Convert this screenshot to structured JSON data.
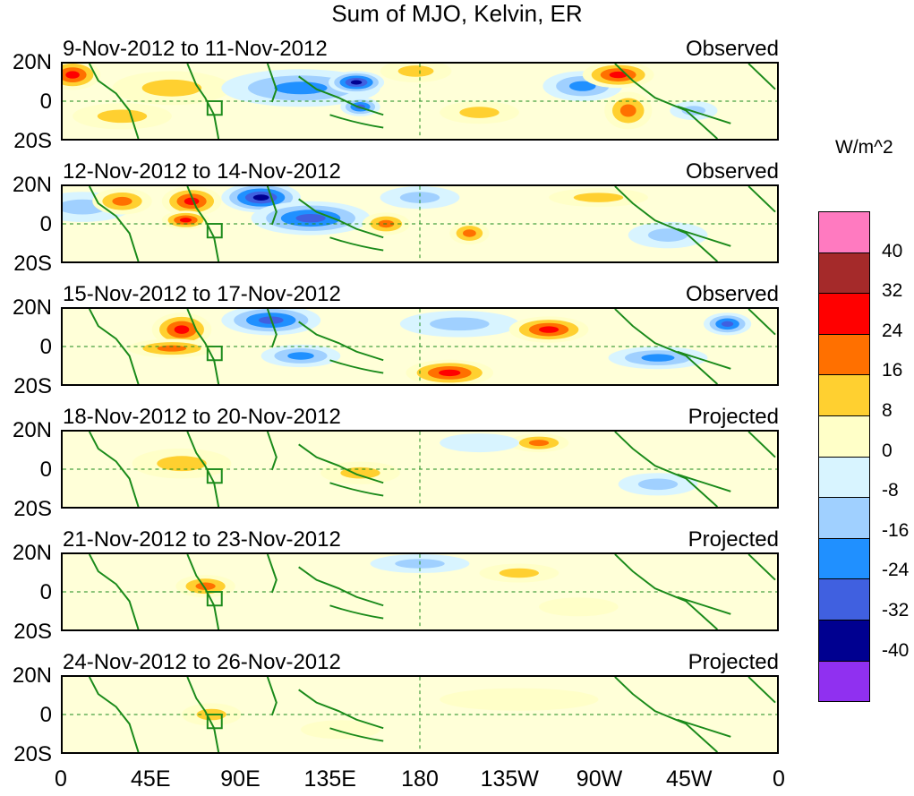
{
  "title": "Sum of MJO, Kelvin, ER",
  "units": "W/m^2",
  "panels": [
    {
      "date_range": "9-Nov-2012 to 11-Nov-2012",
      "kind": "Observed"
    },
    {
      "date_range": "12-Nov-2012 to 14-Nov-2012",
      "kind": "Observed"
    },
    {
      "date_range": "15-Nov-2012 to 17-Nov-2012",
      "kind": "Observed"
    },
    {
      "date_range": "18-Nov-2012 to 20-Nov-2012",
      "kind": "Projected"
    },
    {
      "date_range": "21-Nov-2012 to 23-Nov-2012",
      "kind": "Projected"
    },
    {
      "date_range": "24-Nov-2012 to 26-Nov-2012",
      "kind": "Projected"
    }
  ],
  "lat_labels": [
    "20N",
    "0",
    "20S"
  ],
  "lon_labels": [
    "0",
    "45E",
    "90E",
    "135E",
    "180",
    "135W",
    "90W",
    "45W",
    "0"
  ],
  "colorbar": {
    "ticks": [
      "40",
      "32",
      "24",
      "16",
      "8",
      "0",
      "-8",
      "-16",
      "-24",
      "-32",
      "-40"
    ],
    "colors": [
      "#ff7ac0",
      "#a52a2a",
      "#ff0000",
      "#ff7000",
      "#ffd030",
      "#ffffc8",
      "#d8f4ff",
      "#a0d0ff",
      "#2090ff",
      "#4060e0",
      "#000090",
      "#9030f0"
    ]
  },
  "chart_data": {
    "type": "heatmap",
    "title": "Sum of MJO, Kelvin, ER",
    "variable_units": "W/m^2",
    "x_axis": {
      "label": "Longitude",
      "range": [
        0,
        360
      ],
      "ticks": [
        "0",
        "45E",
        "90E",
        "135E",
        "180",
        "135W",
        "90W",
        "45W",
        "0"
      ]
    },
    "y_axis": {
      "label": "Latitude",
      "range": [
        -20,
        20
      ],
      "ticks": [
        "20N",
        "0",
        "20S"
      ]
    },
    "contour_levels": [
      -40,
      -32,
      -24,
      -16,
      -8,
      0,
      8,
      16,
      24,
      32,
      40
    ],
    "panels": [
      {
        "date_range": "9-Nov-2012 to 11-Nov-2012",
        "kind": "Observed",
        "features": [
          {
            "lon": 5,
            "lat": 14,
            "value": 28,
            "w": 14,
            "h": 8
          },
          {
            "lon": 55,
            "lat": 7,
            "value": 12,
            "w": 30,
            "h": 9
          },
          {
            "lon": 30,
            "lat": -8,
            "value": 14,
            "w": 25,
            "h": 7
          },
          {
            "lon": 120,
            "lat": 7,
            "value": -22,
            "w": 40,
            "h": 10
          },
          {
            "lon": 148,
            "lat": 10,
            "value": -34,
            "w": 14,
            "h": 6
          },
          {
            "lon": 150,
            "lat": -3,
            "value": -28,
            "w": 10,
            "h": 5
          },
          {
            "lon": 178,
            "lat": 16,
            "value": 14,
            "w": 18,
            "h": 6
          },
          {
            "lon": 210,
            "lat": -6,
            "value": 12,
            "w": 20,
            "h": 6
          },
          {
            "lon": 262,
            "lat": 8,
            "value": -18,
            "w": 20,
            "h": 8
          },
          {
            "lon": 280,
            "lat": 14,
            "value": 32,
            "w": 18,
            "h": 7
          },
          {
            "lon": 285,
            "lat": -5,
            "value": 24,
            "w": 12,
            "h": 10
          },
          {
            "lon": 318,
            "lat": -5,
            "value": -16,
            "w": 12,
            "h": 5
          }
        ]
      },
      {
        "date_range": "12-Nov-2012 to 14-Nov-2012",
        "kind": "Observed",
        "features": [
          {
            "lon": 10,
            "lat": 9,
            "value": -10,
            "w": 25,
            "h": 8
          },
          {
            "lon": 30,
            "lat": 12,
            "value": 22,
            "w": 15,
            "h": 7
          },
          {
            "lon": 65,
            "lat": 12,
            "value": 28,
            "w": 15,
            "h": 8
          },
          {
            "lon": 62,
            "lat": 2,
            "value": 26,
            "w": 12,
            "h": 5
          },
          {
            "lon": 100,
            "lat": 14,
            "value": -34,
            "w": 20,
            "h": 8
          },
          {
            "lon": 125,
            "lat": 3,
            "value": -26,
            "w": 30,
            "h": 9
          },
          {
            "lon": 163,
            "lat": 0,
            "value": 24,
            "w": 12,
            "h": 6
          },
          {
            "lon": 180,
            "lat": 14,
            "value": -14,
            "w": 20,
            "h": 6
          },
          {
            "lon": 205,
            "lat": -5,
            "value": 18,
            "w": 10,
            "h": 6
          },
          {
            "lon": 270,
            "lat": 14,
            "value": 14,
            "w": 25,
            "h": 5
          },
          {
            "lon": 305,
            "lat": -6,
            "value": -16,
            "w": 20,
            "h": 7
          }
        ]
      },
      {
        "date_range": "15-Nov-2012 to 17-Nov-2012",
        "kind": "Observed",
        "features": [
          {
            "lon": 60,
            "lat": 9,
            "value": 28,
            "w": 15,
            "h": 9
          },
          {
            "lon": 55,
            "lat": -1,
            "value": 20,
            "w": 22,
            "h": 5
          },
          {
            "lon": 105,
            "lat": 14,
            "value": -30,
            "w": 25,
            "h": 8
          },
          {
            "lon": 120,
            "lat": -5,
            "value": -20,
            "w": 20,
            "h": 6
          },
          {
            "lon": 200,
            "lat": 12,
            "value": -14,
            "w": 30,
            "h": 7
          },
          {
            "lon": 245,
            "lat": 9,
            "value": 28,
            "w": 20,
            "h": 7
          },
          {
            "lon": 195,
            "lat": -14,
            "value": 26,
            "w": 22,
            "h": 7
          },
          {
            "lon": 300,
            "lat": -6,
            "value": -18,
            "w": 25,
            "h": 6
          },
          {
            "lon": 335,
            "lat": 12,
            "value": -28,
            "w": 12,
            "h": 6
          }
        ]
      },
      {
        "date_range": "18-Nov-2012 to 20-Nov-2012",
        "kind": "Projected",
        "features": [
          {
            "lon": 60,
            "lat": 3,
            "value": 10,
            "w": 25,
            "h": 8
          },
          {
            "lon": 150,
            "lat": -2,
            "value": 10,
            "w": 20,
            "h": 6
          },
          {
            "lon": 240,
            "lat": 14,
            "value": 18,
            "w": 15,
            "h": 5
          },
          {
            "lon": 210,
            "lat": 14,
            "value": -8,
            "w": 20,
            "h": 5
          },
          {
            "lon": 300,
            "lat": -8,
            "value": -10,
            "w": 20,
            "h": 6
          }
        ]
      },
      {
        "date_range": "21-Nov-2012 to 23-Nov-2012",
        "kind": "Projected",
        "features": [
          {
            "lon": 72,
            "lat": 3,
            "value": 22,
            "w": 15,
            "h": 6
          },
          {
            "lon": 180,
            "lat": 15,
            "value": -12,
            "w": 25,
            "h": 5
          },
          {
            "lon": 230,
            "lat": 10,
            "value": 10,
            "w": 20,
            "h": 5
          },
          {
            "lon": 260,
            "lat": -8,
            "value": 8,
            "w": 20,
            "h": 5
          }
        ]
      },
      {
        "date_range": "24-Nov-2012 to 26-Nov-2012",
        "kind": "Projected",
        "features": [
          {
            "lon": 75,
            "lat": 0,
            "value": 12,
            "w": 15,
            "h": 6
          },
          {
            "lon": 140,
            "lat": -8,
            "value": 8,
            "w": 20,
            "h": 5
          },
          {
            "lon": 230,
            "lat": 8,
            "value": 6,
            "w": 40,
            "h": 6
          }
        ]
      }
    ]
  }
}
